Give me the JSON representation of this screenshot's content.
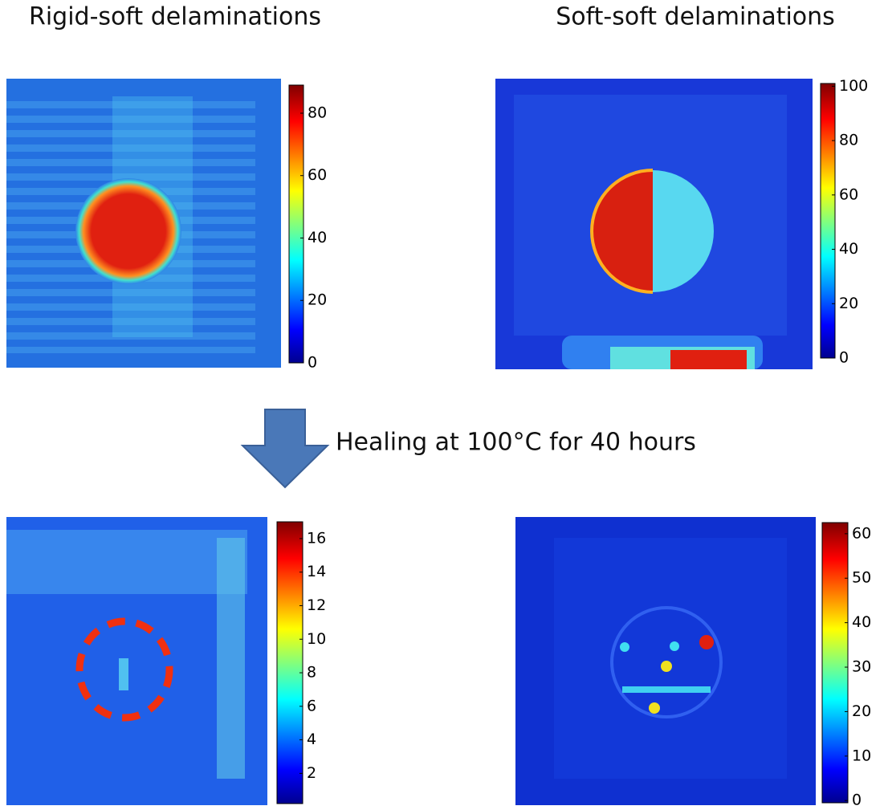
{
  "headers": [
    "Rigid-soft delaminations",
    "Soft-soft delaminations"
  ],
  "annotation": "Healing at 100°C for 40 hours",
  "panels": [
    {
      "colorbar": {
        "lim": [
          0,
          89
        ],
        "ticks": [
          0,
          20,
          40,
          60,
          80
        ]
      }
    },
    {
      "colorbar": {
        "lim": [
          0,
          101
        ],
        "ticks": [
          0,
          20,
          40,
          60,
          80,
          100
        ]
      }
    },
    {
      "colorbar": {
        "lim": [
          0.2,
          17
        ],
        "ticks": [
          2,
          4,
          6,
          8,
          10,
          12,
          14,
          16
        ]
      }
    },
    {
      "colorbar": {
        "lim": [
          -0.5,
          62.5
        ],
        "ticks": [
          0,
          10,
          20,
          30,
          40,
          50,
          60
        ]
      }
    }
  ]
}
